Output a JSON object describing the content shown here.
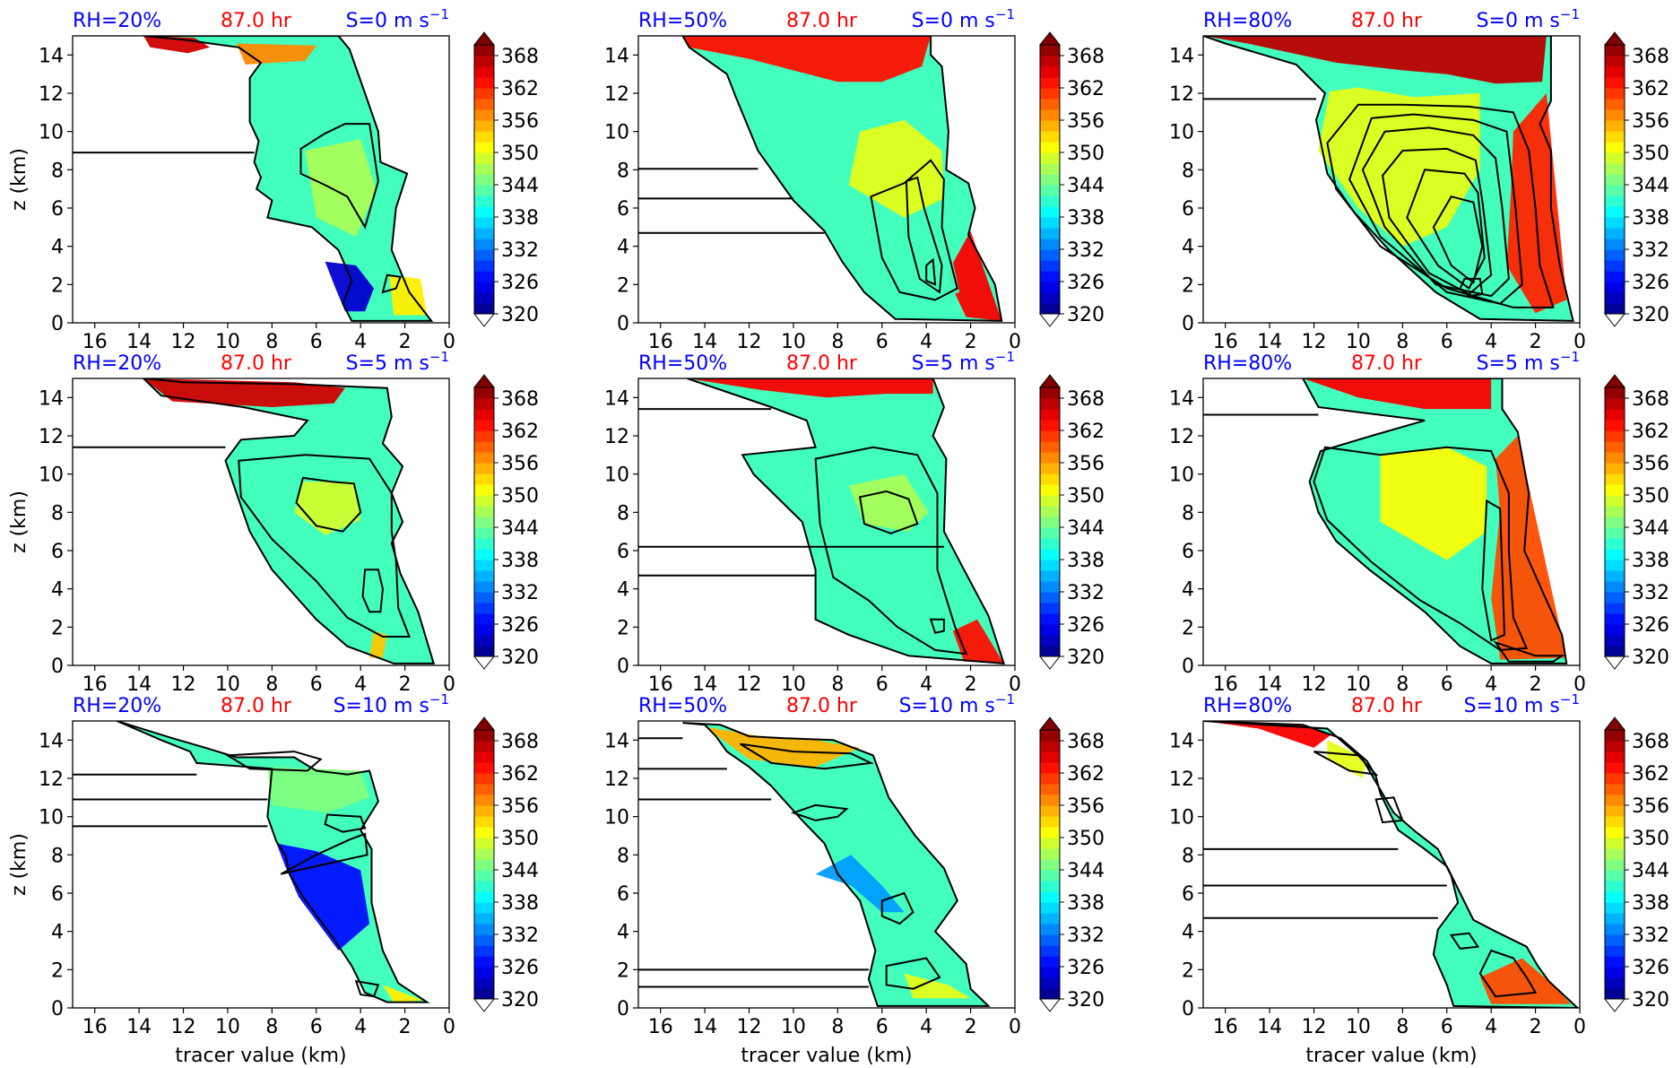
{
  "figure": {
    "rows": [
      {
        "shear_label": "S=0 m s",
        "shear_sup": "−1"
      },
      {
        "shear_label": "S=5 m s",
        "shear_sup": "−1"
      },
      {
        "shear_label": "S=10 m s",
        "shear_sup": "−1"
      }
    ],
    "cols": [
      {
        "rh_label": "RH=20%"
      },
      {
        "rh_label": "RH=50%"
      },
      {
        "rh_label": "RH=80%"
      }
    ],
    "time_label": "87.0 hr",
    "colors": {
      "rh_label": "#0000ff",
      "time_label": "#ff0000",
      "shear_label": "#0000ff",
      "contour": "#000000"
    }
  },
  "chart_data": {
    "type": "contourf",
    "xlabel": "tracer value (km)",
    "ylabel": "z (km)",
    "xlim": [
      17,
      0
    ],
    "ylim": [
      0,
      15
    ],
    "xticks": [
      16,
      14,
      12,
      10,
      8,
      6,
      4,
      2,
      0
    ],
    "yticks": [
      0,
      2,
      4,
      6,
      8,
      10,
      12,
      14
    ],
    "colorbar": {
      "ticks": [
        320,
        326,
        332,
        338,
        344,
        350,
        356,
        362,
        368
      ],
      "min": 320,
      "max": 370,
      "colormap": "jet",
      "extend": "both"
    }
  }
}
